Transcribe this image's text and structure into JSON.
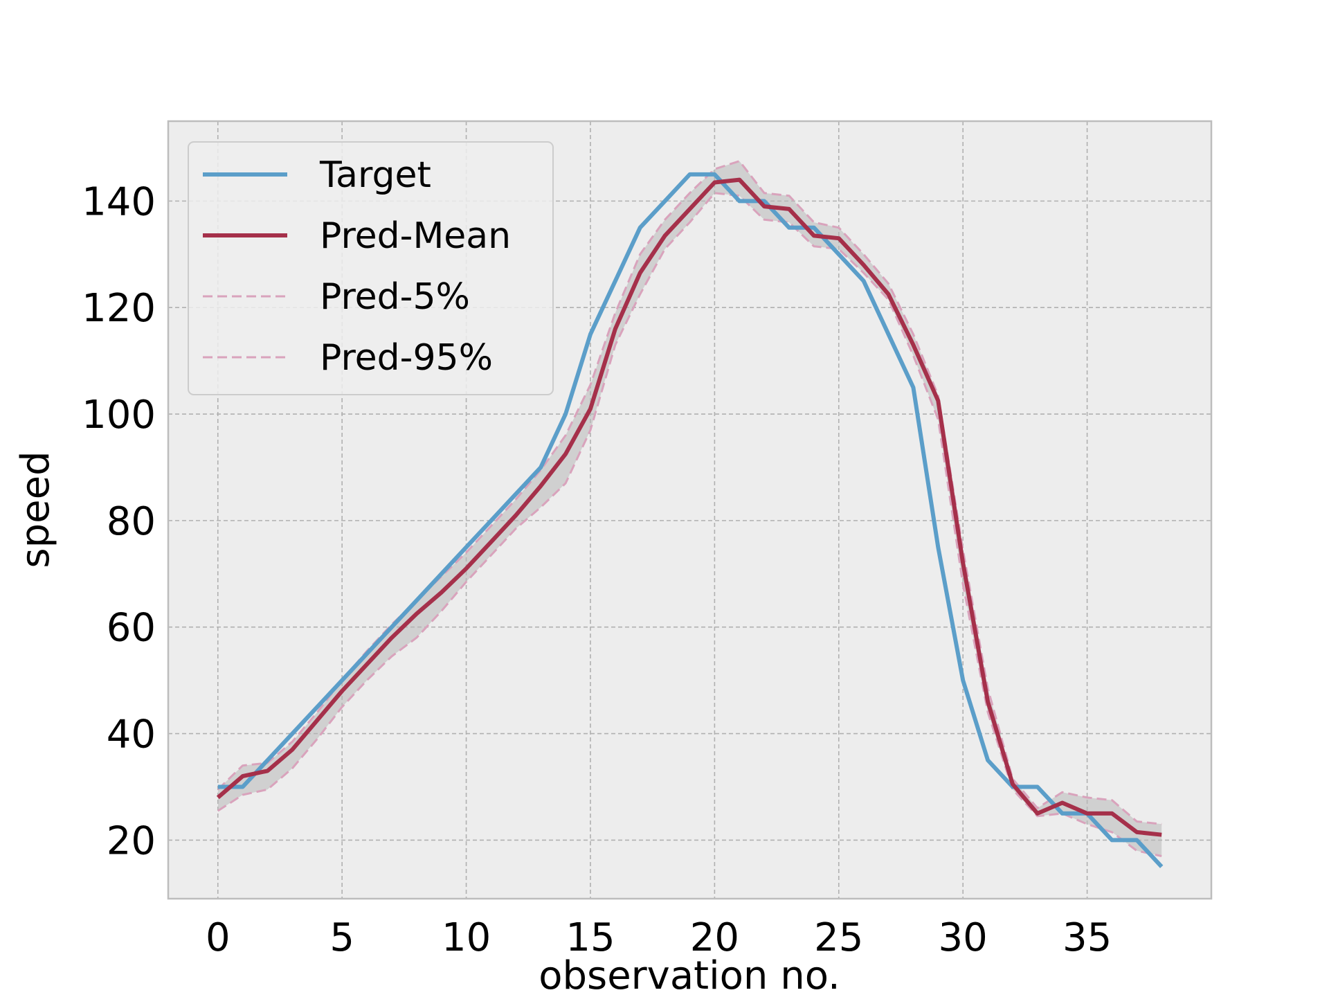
{
  "chart_data": {
    "type": "line",
    "title": "",
    "xlabel": "observation no.",
    "ylabel": "speed",
    "xlim": [
      -2,
      40
    ],
    "ylim": [
      9,
      155
    ],
    "xticks": [
      0,
      5,
      10,
      15,
      20,
      25,
      30,
      35
    ],
    "yticks": [
      20,
      40,
      60,
      80,
      100,
      120,
      140
    ],
    "grid": true,
    "legend_position": "top-left",
    "x": [
      0,
      1,
      2,
      3,
      4,
      5,
      6,
      7,
      8,
      9,
      10,
      11,
      12,
      13,
      14,
      15,
      16,
      17,
      18,
      19,
      20,
      21,
      22,
      23,
      24,
      25,
      26,
      27,
      28,
      29,
      30,
      31,
      32,
      33,
      34,
      35,
      36,
      37,
      38
    ],
    "series": [
      {
        "name": "Target",
        "color": "#5b9ec9",
        "style": "solid",
        "values": [
          30,
          30,
          35,
          40,
          45,
          50,
          55,
          60,
          65,
          70,
          75,
          80,
          85,
          90,
          100,
          115,
          125,
          135,
          140,
          145,
          145,
          140,
          140,
          135,
          135,
          130,
          125,
          115,
          105,
          75,
          50,
          35,
          30,
          30,
          25,
          25,
          20,
          20,
          15
        ]
      },
      {
        "name": "Pred-Mean",
        "color": "#a5304a",
        "style": "solid",
        "values": [
          28,
          32,
          33,
          37,
          42.5,
          48,
          53,
          58,
          62.5,
          66.5,
          71,
          76,
          81,
          86.5,
          92.5,
          101,
          116,
          126.5,
          133.5,
          138.5,
          143.5,
          144,
          139,
          138.5,
          133.5,
          133,
          128,
          122.5,
          113,
          102.5,
          72,
          46,
          30.5,
          25,
          27,
          25,
          25,
          21.5,
          21
        ]
      },
      {
        "name": "Pred-5%",
        "color": "#d9a3bc",
        "style": "dashed",
        "values": [
          25.5,
          28.5,
          29.5,
          33.5,
          39,
          45,
          50,
          54.5,
          58,
          63,
          68.5,
          73.5,
          78.5,
          82.5,
          87,
          97,
          113,
          122.5,
          131,
          136,
          141.5,
          141,
          136.5,
          136,
          131.5,
          131,
          126.5,
          121.5,
          111,
          99,
          68,
          44,
          29.5,
          24.5,
          25,
          23,
          21.5,
          18,
          17
        ]
      },
      {
        "name": "Pred-95%",
        "color": "#d9a3bc",
        "style": "dashed",
        "values": [
          29.5,
          34,
          34.5,
          38.5,
          44,
          50,
          55.5,
          60.5,
          65,
          69.5,
          74,
          79,
          84,
          89.5,
          96,
          105.5,
          119,
          130,
          136.5,
          141.5,
          146,
          147.5,
          141.5,
          141,
          136,
          135,
          130,
          124.5,
          115,
          103.5,
          74.5,
          48.5,
          31.5,
          26,
          29,
          28,
          27.5,
          23.5,
          23
        ]
      }
    ],
    "band": {
      "lower": "Pred-5%",
      "upper": "Pred-95%",
      "color": "#b8b8b8"
    },
    "colors": {
      "plot_background": "#ededed",
      "frame": "#bdbdbd",
      "grid": "#b0b0b0"
    }
  }
}
